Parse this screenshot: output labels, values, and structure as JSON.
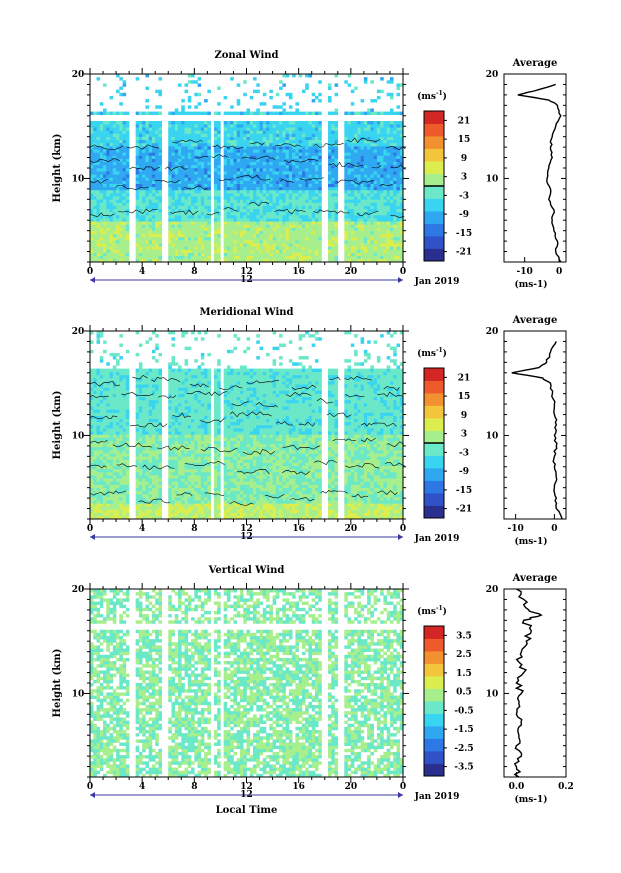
{
  "figure": {
    "xlabel": "Local Time",
    "date_label": "Jan 2019",
    "unit_label": "(ms",
    "unit_sup": "-1",
    "unit_close": ")"
  },
  "chart_data": [
    {
      "type": "heatmap",
      "title": "Zonal Wind",
      "ylabel": "Height (km)",
      "xlabel": "",
      "x_ticks": [
        "0",
        "4",
        "8",
        "12",
        "16",
        "20",
        "0"
      ],
      "x_secondary_tick": "12",
      "y_ticks": [
        "20",
        "10"
      ],
      "ylim": [
        2,
        20
      ],
      "colorbar": {
        "unit": "(ms-1)",
        "ticks": [
          "21",
          "15",
          "9",
          "3",
          "-3",
          "-9",
          "-15",
          "-21"
        ],
        "range": [
          -24,
          24
        ]
      },
      "profile": {
        "title": "Average",
        "ylim": [
          2,
          20
        ],
        "xlim": [
          -16,
          2
        ],
        "x_ticks": [
          "-10",
          "0"
        ],
        "y_ticks": [
          "20",
          "10"
        ],
        "xlabel": "(ms-1)",
        "heights": [
          2,
          3,
          4,
          5,
          6,
          7,
          8,
          9,
          10,
          11,
          12,
          13,
          14,
          15,
          16,
          17,
          17.5,
          18,
          18.5,
          19
        ],
        "values": [
          0.5,
          -1,
          -0.5,
          -1.5,
          -2,
          -1.5,
          -3,
          -2.5,
          -3.5,
          -3,
          -2,
          -2.5,
          -2,
          -1,
          0.5,
          -0.5,
          -3,
          -12,
          -6,
          -1
        ]
      }
    },
    {
      "type": "heatmap",
      "title": "Meridional Wind",
      "ylabel": "Height (km)",
      "xlabel": "",
      "x_ticks": [
        "0",
        "4",
        "8",
        "12",
        "16",
        "20",
        "0"
      ],
      "x_secondary_tick": "12",
      "y_ticks": [
        "20",
        "10"
      ],
      "ylim": [
        2,
        20
      ],
      "colorbar": {
        "unit": "(ms-1)",
        "ticks": [
          "21",
          "15",
          "9",
          "3",
          "-3",
          "-9",
          "-15",
          "-21"
        ],
        "range": [
          -24,
          24
        ]
      },
      "profile": {
        "title": "Average",
        "ylim": [
          2,
          20
        ],
        "xlim": [
          -13,
          3
        ],
        "x_ticks": [
          "-10",
          "0"
        ],
        "y_ticks": [
          "20",
          "10"
        ],
        "xlabel": "(ms-1)",
        "heights": [
          2,
          3,
          4,
          5,
          6,
          7,
          8,
          9,
          10,
          11,
          12,
          13,
          14,
          15,
          15.5,
          16,
          16.5,
          17,
          18,
          19
        ],
        "values": [
          2,
          0.5,
          0.5,
          0,
          0.5,
          0,
          0,
          0.5,
          0,
          0.5,
          0,
          0,
          -0.5,
          -1,
          -3,
          -11,
          -4,
          -2,
          -1,
          0.5
        ]
      }
    },
    {
      "type": "heatmap",
      "title": "Vertical Wind",
      "ylabel": "Height (km)",
      "xlabel": "Local Time",
      "x_ticks": [
        "0",
        "4",
        "8",
        "12",
        "16",
        "20",
        "0"
      ],
      "x_secondary_tick": "12",
      "y_ticks": [
        "20",
        "10"
      ],
      "ylim": [
        2,
        20
      ],
      "colorbar": {
        "unit": "(ms-1)",
        "ticks": [
          "3.5",
          "2.5",
          "1.5",
          "0.5",
          "-0.5",
          "-1.5",
          "-2.5",
          "-3.5"
        ],
        "range": [
          -4,
          4
        ]
      },
      "profile": {
        "title": "Average",
        "ylim": [
          2,
          20
        ],
        "xlim": [
          -0.05,
          0.2
        ],
        "x_ticks": [
          "0.0",
          "0.2"
        ],
        "y_ticks": [
          "20",
          "10"
        ],
        "xlabel": "(ms-1)",
        "heights": [
          2,
          3,
          4,
          5,
          6,
          7,
          8,
          9,
          10,
          11,
          12,
          13,
          14,
          15,
          16,
          17,
          17.5,
          18,
          19,
          20
        ],
        "values": [
          0.01,
          0.0,
          0.02,
          0.0,
          0.01,
          0.02,
          0.0,
          0.01,
          0.02,
          0.0,
          0.03,
          0.01,
          0.02,
          0.04,
          0.06,
          0.03,
          0.1,
          0.05,
          0.03,
          0.0
        ]
      }
    }
  ]
}
